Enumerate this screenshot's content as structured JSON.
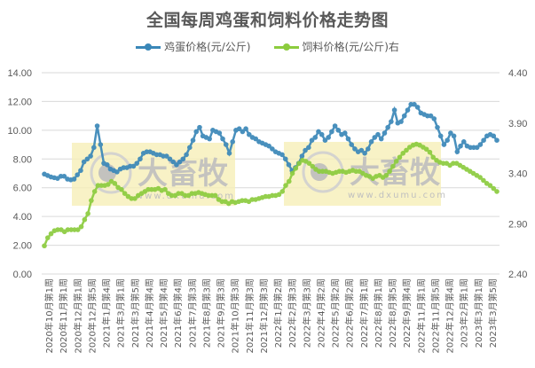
{
  "chart_data": {
    "type": "line",
    "title": "全国每周鸡蛋和饲料价格走势图",
    "legend_position": "top",
    "grid": true,
    "y_left": {
      "label": "",
      "ticks": [
        "0.00",
        "2.00",
        "4.00",
        "6.00",
        "8.00",
        "10.00",
        "12.00",
        "14.00"
      ],
      "range": [
        0,
        14
      ]
    },
    "y_right": {
      "label": "",
      "ticks": [
        "2.40",
        "2.90",
        "3.40",
        "3.90",
        "4.40"
      ],
      "range": [
        2.4,
        4.4
      ]
    },
    "x_tick_labels": [
      "2020年10月第1周",
      "2020年11月第1周",
      "2020年12月第1周",
      "2020年12月第5周",
      "2021年1月第4周",
      "2021年3月第1周",
      "2021年3月第5周",
      "2021年4月第4周",
      "2021年5月第4周",
      "2021年6月第4周",
      "2021年7月第3周",
      "2021年8月第3周",
      "2021年9月第3周",
      "2021年10月第3周",
      "2021年11月第3周",
      "2021年12月第3周",
      "2022年1月第2周",
      "2022年2月第3周",
      "2022年3月第3周",
      "2022年4月第2周",
      "2022年5月第2周",
      "2022年6月第2周",
      "2022年7月第1周",
      "2022年8月第1周",
      "2022年8月第5周",
      "2022年9月第4周",
      "2022年11月第1周",
      "2022年11月第5周",
      "2022年12月第4周",
      "2023年2月第1周",
      "2023年3月第1周",
      "2023年3月第5周"
    ],
    "series": [
      {
        "name": "鸡蛋价格(元/公斤)",
        "axis": "left",
        "color": "#3a87b8",
        "values": [
          6.95,
          6.85,
          6.75,
          6.7,
          6.65,
          6.8,
          6.8,
          6.6,
          6.55,
          6.6,
          6.9,
          7.2,
          7.8,
          8.0,
          8.2,
          8.8,
          10.3,
          9.0,
          7.7,
          7.6,
          7.3,
          7.2,
          7.1,
          7.3,
          7.4,
          7.4,
          7.5,
          7.5,
          7.7,
          8.0,
          8.4,
          8.5,
          8.5,
          8.4,
          8.3,
          8.3,
          8.2,
          8.2,
          8.0,
          7.8,
          7.6,
          7.8,
          8.0,
          8.3,
          8.8,
          9.3,
          9.9,
          10.2,
          9.6,
          9.5,
          9.4,
          10.0,
          9.9,
          9.8,
          9.4,
          9.0,
          8.4,
          9.2,
          10.0,
          10.1,
          9.9,
          10.1,
          9.7,
          9.5,
          9.4,
          9.2,
          9.1,
          9.0,
          8.9,
          8.7,
          8.5,
          8.4,
          8.3,
          8.0,
          7.6,
          7.2,
          7.4,
          7.7,
          8.2,
          8.6,
          8.8,
          9.3,
          9.5,
          9.9,
          9.7,
          9.3,
          9.5,
          9.9,
          10.3,
          10.0,
          9.7,
          9.8,
          9.4,
          9.0,
          8.7,
          8.5,
          8.6,
          8.4,
          8.7,
          9.2,
          9.5,
          9.7,
          9.4,
          9.8,
          10.2,
          10.6,
          11.4,
          10.5,
          10.6,
          11.0,
          11.4,
          11.8,
          11.8,
          11.6,
          11.2,
          11.1,
          11.0,
          11.0,
          10.8,
          10.2,
          9.6,
          9.0,
          9.3,
          9.8,
          9.6,
          8.5,
          8.9,
          9.2,
          8.9,
          8.8,
          8.8,
          8.8,
          9.0,
          9.3,
          9.6,
          9.7,
          9.6,
          9.3
        ]
      },
      {
        "name": "饲料价格(元/公斤)右",
        "axis": "right",
        "color": "#8ccc3e",
        "values": [
          2.68,
          2.76,
          2.8,
          2.83,
          2.84,
          2.84,
          2.82,
          2.84,
          2.84,
          2.84,
          2.84,
          2.87,
          2.94,
          3.0,
          3.13,
          3.22,
          3.28,
          3.28,
          3.28,
          3.29,
          3.32,
          3.3,
          3.26,
          3.24,
          3.2,
          3.17,
          3.15,
          3.15,
          3.18,
          3.2,
          3.22,
          3.24,
          3.24,
          3.24,
          3.25,
          3.23,
          3.24,
          3.2,
          3.18,
          3.18,
          3.2,
          3.2,
          3.18,
          3.18,
          3.2,
          3.2,
          3.21,
          3.2,
          3.19,
          3.18,
          3.18,
          3.18,
          3.14,
          3.12,
          3.12,
          3.1,
          3.12,
          3.11,
          3.12,
          3.13,
          3.13,
          3.12,
          3.14,
          3.14,
          3.15,
          3.16,
          3.17,
          3.17,
          3.18,
          3.18,
          3.19,
          3.22,
          3.28,
          3.32,
          3.4,
          3.45,
          3.5,
          3.53,
          3.52,
          3.5,
          3.47,
          3.44,
          3.42,
          3.42,
          3.42,
          3.41,
          3.4,
          3.41,
          3.42,
          3.42,
          3.41,
          3.42,
          3.43,
          3.42,
          3.42,
          3.4,
          3.38,
          3.37,
          3.35,
          3.37,
          3.38,
          3.36,
          3.38,
          3.42,
          3.47,
          3.52,
          3.56,
          3.6,
          3.63,
          3.66,
          3.68,
          3.69,
          3.68,
          3.66,
          3.64,
          3.61,
          3.56,
          3.53,
          3.51,
          3.5,
          3.5,
          3.48,
          3.5,
          3.5,
          3.48,
          3.46,
          3.44,
          3.42,
          3.4,
          3.38,
          3.36,
          3.33,
          3.3,
          3.28,
          3.25,
          3.22
        ]
      }
    ]
  },
  "title": "全国每周鸡蛋和饲料价格走势图",
  "legend": [
    {
      "label": "鸡蛋价格(元/公斤)",
      "color": "#3a87b8"
    },
    {
      "label": "饲料价格(元/公斤)右",
      "color": "#8ccc3e"
    }
  ],
  "watermark": {
    "brand": "大畜牧",
    "url": "www.dxumu.com"
  }
}
